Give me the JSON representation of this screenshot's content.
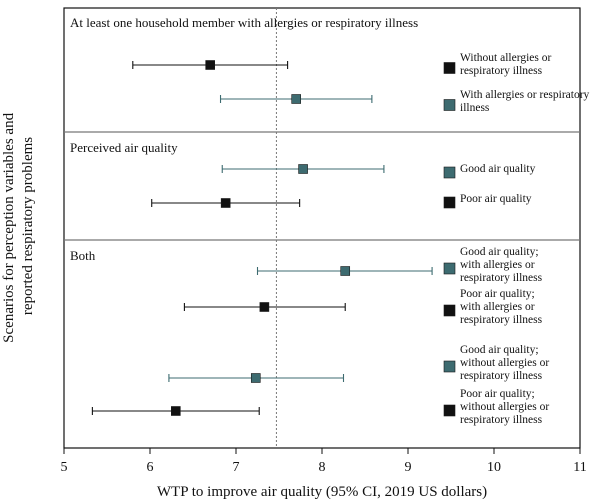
{
  "colors": {
    "black": "#111111",
    "teal": "#3d6b70",
    "reference": "#777777",
    "divider": "#777777"
  },
  "chart_data": {
    "type": "forest",
    "xlabel": "WTP to improve air quality  (95% CI, 2019 US dollars)",
    "ylabel": "Scenarios for perception variables and reported respiratory problems",
    "xlim": [
      5,
      11
    ],
    "xticks": [
      "5",
      "6",
      "7",
      "8",
      "9",
      "10",
      "11"
    ],
    "reference_x": 7.47,
    "panels": [
      {
        "title": "At least one household member with allergies or respiratory illness",
        "rows": [
          {
            "legend": [
              "Without  allergies or",
              "respiratory illness"
            ],
            "color": "black",
            "estimate": 6.7,
            "ci": [
              5.8,
              7.6
            ]
          },
          {
            "legend": [
              "With allergies or respiratory",
              "illness"
            ],
            "color": "teal",
            "estimate": 7.7,
            "ci": [
              6.82,
              8.58
            ]
          }
        ]
      },
      {
        "title": "Perceived air quality",
        "rows": [
          {
            "legend": [
              "Good air quality"
            ],
            "color": "teal",
            "estimate": 7.78,
            "ci": [
              6.84,
              8.72
            ]
          },
          {
            "legend": [
              "Poor air quality"
            ],
            "color": "black",
            "estimate": 6.88,
            "ci": [
              6.02,
              7.74
            ]
          }
        ]
      },
      {
        "title": "Both",
        "rows": [
          {
            "legend": [
              "Good air quality;",
              "with allergies or",
              "respiratory illness"
            ],
            "color": "teal",
            "estimate": 8.27,
            "ci": [
              7.25,
              9.28
            ]
          },
          {
            "legend": [
              "Poor air quality;",
              "with allergies or",
              "respiratory illness"
            ],
            "color": "black",
            "estimate": 7.33,
            "ci": [
              6.4,
              8.27
            ]
          },
          {
            "legend": [
              "Good air quality;",
              "without allergies or",
              "respiratory illness"
            ],
            "color": "teal",
            "estimate": 7.23,
            "ci": [
              6.22,
              8.25
            ]
          },
          {
            "legend": [
              "Poor air quality;",
              "without allergies or",
              "respiratory illness"
            ],
            "color": "black",
            "estimate": 6.3,
            "ci": [
              5.33,
              7.27
            ]
          }
        ]
      }
    ]
  }
}
